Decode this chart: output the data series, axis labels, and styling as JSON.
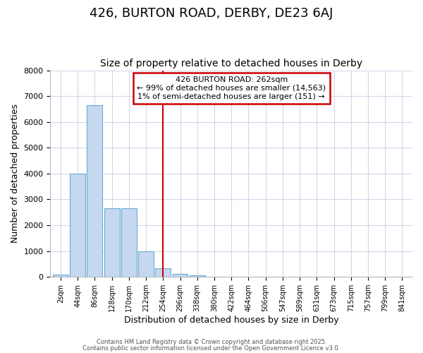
{
  "title": "426, BURTON ROAD, DERBY, DE23 6AJ",
  "subtitle": "Size of property relative to detached houses in Derby",
  "xlabel": "Distribution of detached houses by size in Derby",
  "ylabel": "Number of detached properties",
  "categories": [
    "2sqm",
    "44sqm",
    "86sqm",
    "128sqm",
    "170sqm",
    "212sqm",
    "254sqm",
    "296sqm",
    "338sqm",
    "380sqm",
    "422sqm",
    "464sqm",
    "506sqm",
    "547sqm",
    "589sqm",
    "631sqm",
    "673sqm",
    "715sqm",
    "757sqm",
    "799sqm",
    "841sqm"
  ],
  "values": [
    75,
    4000,
    6650,
    2650,
    2650,
    1000,
    325,
    110,
    60,
    5,
    0,
    0,
    0,
    0,
    0,
    0,
    0,
    0,
    0,
    0,
    0
  ],
  "bar_color": "#c5d8f0",
  "bar_edgecolor": "#6aaad4",
  "bar_alpha": 1.0,
  "vline_x_index": 6,
  "vline_color": "#cc0000",
  "annotation_line1": "426 BURTON ROAD: 262sqm",
  "annotation_line2": "← 99% of detached houses are smaller (14,563)",
  "annotation_line3": "1% of semi-detached houses are larger (151) →",
  "annotation_box_color": "#ffffff",
  "annotation_box_edgecolor": "#cc0000",
  "ylim": [
    0,
    8000
  ],
  "yticks": [
    0,
    1000,
    2000,
    3000,
    4000,
    5000,
    6000,
    7000,
    8000
  ],
  "bg_color": "#ffffff",
  "grid_color": "#d0d8e8",
  "title_fontsize": 13,
  "subtitle_fontsize": 10,
  "axis_label_fontsize": 9,
  "tick_fontsize": 8,
  "footer_line1": "Contains HM Land Registry data © Crown copyright and database right 2025.",
  "footer_line2": "Contains public sector information licensed under the Open Government Licence v3.0."
}
